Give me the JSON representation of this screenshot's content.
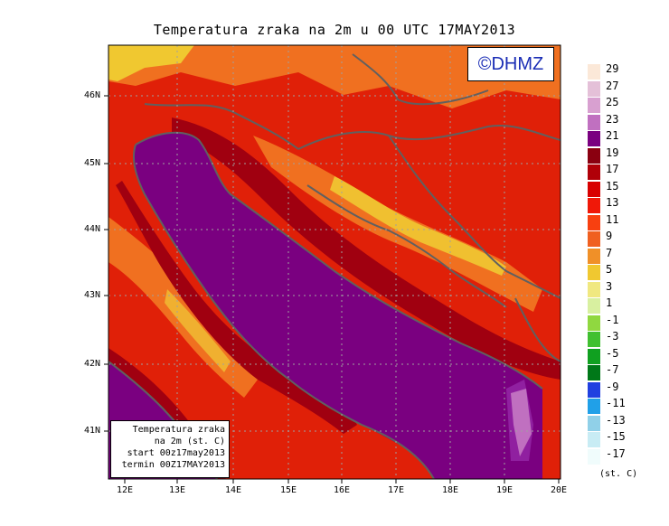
{
  "title": "Temperatura zraka na 2m u 00 UTC 17MAY2013",
  "logo_text": "©DHMZ",
  "info_box": {
    "line1": "Temperatura zraka",
    "line2": "na 2m (st. C)",
    "line3": "start 00z17may2013",
    "line4": "termin 00Z17MAY2013"
  },
  "x_ticks": [
    "12E",
    "13E",
    "14E",
    "15E",
    "16E",
    "17E",
    "18E",
    "19E",
    "20E"
  ],
  "y_ticks": [
    "46N",
    "45N",
    "44N",
    "43N",
    "42N",
    "41N"
  ],
  "legend": {
    "units": "(st. C)",
    "labels": [
      "29",
      "27",
      "25",
      "23",
      "21",
      "19",
      "17",
      "15",
      "13",
      "11",
      "9",
      "7",
      "5",
      "3",
      "1",
      "-1",
      "-3",
      "-5",
      "-7",
      "-9",
      "-11",
      "-13",
      "-15",
      "-17"
    ],
    "colors": [
      "#fbe8d8",
      "#e4c0d8",
      "#d8a0d0",
      "#c070c0",
      "#7a0080",
      "#8a0010",
      "#b00008",
      "#d80000",
      "#f01808",
      "#f84010",
      "#f06020",
      "#f09028",
      "#f0c830",
      "#f0e880",
      "#d8f0a0",
      "#90d840",
      "#40c030",
      "#10a020",
      "#007818",
      "#2040e0",
      "#20a0e8",
      "#90d0e8",
      "#c8ecf4",
      "#f0fcfc"
    ]
  },
  "colors": {
    "sea": "#7a0080",
    "coastline": "#606060",
    "logo_text": "#1a2db5"
  }
}
